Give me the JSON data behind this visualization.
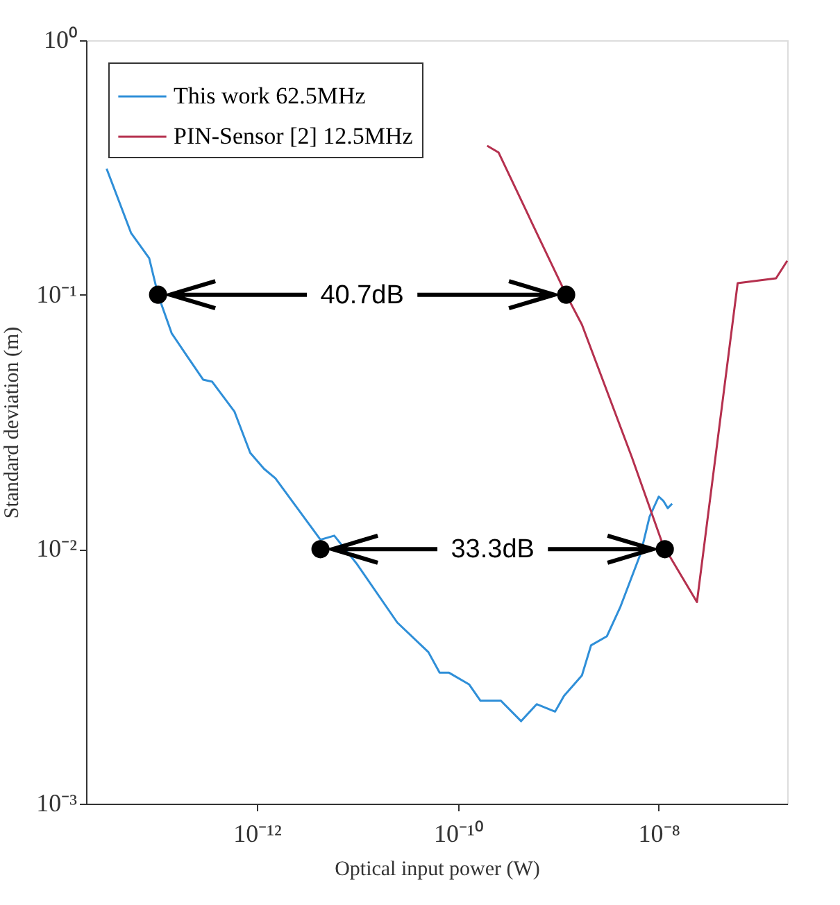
{
  "chart_data": {
    "type": "line",
    "xlabel": "Optical input power (W)",
    "ylabel": "Standard deviation (m)",
    "log": "xy",
    "grid": false,
    "legend": "top left",
    "line_style": "solid",
    "marker": "none",
    "xlim": [
      2e-14,
      1.9e-07
    ],
    "ylim": [
      0.001,
      1
    ],
    "xticks": [
      {
        "value": 1e-12,
        "label": "10⁻¹²"
      },
      {
        "value": 1e-10,
        "label": "10⁻¹⁰"
      },
      {
        "value": 1e-08,
        "label": "10⁻⁸"
      }
    ],
    "yticks": [
      {
        "value": 0.001,
        "label": "10⁻³"
      },
      {
        "value": 0.01,
        "label": "10⁻²"
      },
      {
        "value": 0.1,
        "label": "10⁻¹"
      },
      {
        "value": 1,
        "label": "10⁰"
      }
    ],
    "series": [
      {
        "name": "This work 62.5MHz",
        "color": "#2f8fd8",
        "x": [
          3.2e-14,
          5.6e-14,
          8.5e-14,
          1.04e-13,
          1.42e-13,
          2.04e-13,
          2.92e-13,
          3.6e-13,
          6e-13,
          8.6e-13,
          1.18e-12,
          1.53e-12,
          4.3e-12,
          5.9e-12,
          9.8e-12,
          2.5e-11,
          5.1e-11,
          6.6e-11,
          8.2e-11,
          1.3e-10,
          1.68e-10,
          2.68e-10,
          4.27e-10,
          6.1e-10,
          9.3e-10,
          1.14e-09,
          1.72e-09,
          2.12e-09,
          3.05e-09,
          4.16e-09,
          6.6e-09,
          8.1e-09,
          1e-08,
          1.11e-08,
          1.23e-08,
          1.36e-08
        ],
        "values": [
          0.313,
          0.175,
          0.139,
          0.1,
          0.0706,
          0.0571,
          0.0464,
          0.0455,
          0.0347,
          0.0239,
          0.0207,
          0.019,
          0.0109,
          0.0113,
          0.0088,
          0.00515,
          0.00394,
          0.00327,
          0.00327,
          0.00294,
          0.00254,
          0.00254,
          0.00211,
          0.00246,
          0.0023,
          0.00265,
          0.00319,
          0.00419,
          0.00455,
          0.00595,
          0.0096,
          0.0134,
          0.0161,
          0.0155,
          0.0145,
          0.0151
        ]
      },
      {
        "name": "PIN-Sensor [2] 12.5MHz",
        "color": "#b5304e",
        "x": [
          1.96e-10,
          2.55e-10,
          6.1e-10,
          1.2e-09,
          1.72e-09,
          5.4e-09,
          1.1e-08,
          2.4e-08,
          6.1e-08,
          1.47e-07,
          1.9e-07
        ],
        "values": [
          0.385,
          0.362,
          0.175,
          0.1,
          0.0763,
          0.023,
          0.0104,
          0.0062,
          0.111,
          0.116,
          0.136
        ]
      },
      {
        "type": "scatter",
        "marker": "circle",
        "color": "#000000",
        "x": [
          1.04e-13,
          1.2e-09,
          4.3e-12,
          1.15e-08
        ],
        "values": [
          0.1,
          0.1,
          0.01,
          0.01
        ]
      }
    ],
    "annotations": [
      "40.7dB",
      "33.3dB"
    ]
  }
}
